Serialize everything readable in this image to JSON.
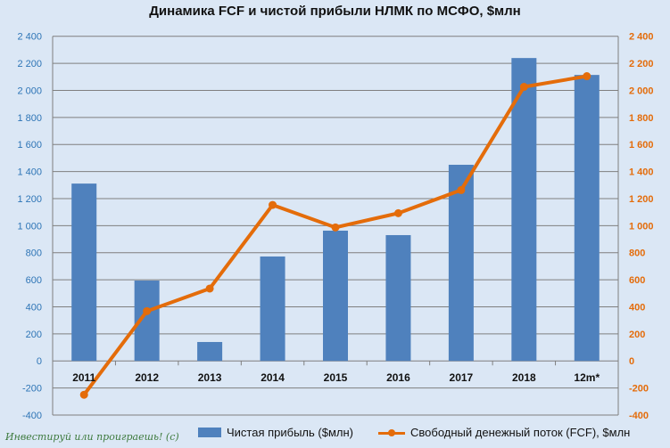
{
  "chart_data": {
    "type": "bar+line",
    "title": "Динамика FCF и чистой прибыли НЛМК по МСФО, $млн",
    "categories": [
      "2011",
      "2012",
      "2013",
      "2014",
      "2015",
      "2016",
      "2017",
      "2018",
      "12m*"
    ],
    "series": [
      {
        "name": "Чистая прибыль ($млн)",
        "type": "bar",
        "color": "#4f81bd",
        "values": [
          1311,
          594,
          140,
          772,
          963,
          930,
          1450,
          2239,
          2114
        ]
      },
      {
        "name": "Свободный денежный поток (FCF), $млн",
        "type": "line",
        "color": "#e46c0a",
        "values": [
          -250,
          368,
          535,
          1153,
          987,
          1092,
          1263,
          2026,
          2105
        ]
      }
    ],
    "ylim": [
      -400,
      2400
    ],
    "yticks": [
      "-400",
      "-200",
      "0",
      "200",
      "400",
      "600",
      "800",
      "1 000",
      "1 200",
      "1 400",
      "1 600",
      "1 800",
      "2 000",
      "2 200",
      "2 400"
    ],
    "left_axis_color": "#2e75b6",
    "right_axis_color": "#e46c0a",
    "grid": true,
    "legend_position": "bottom"
  },
  "watermark": "Инвестируй или проиграешь! (с)"
}
